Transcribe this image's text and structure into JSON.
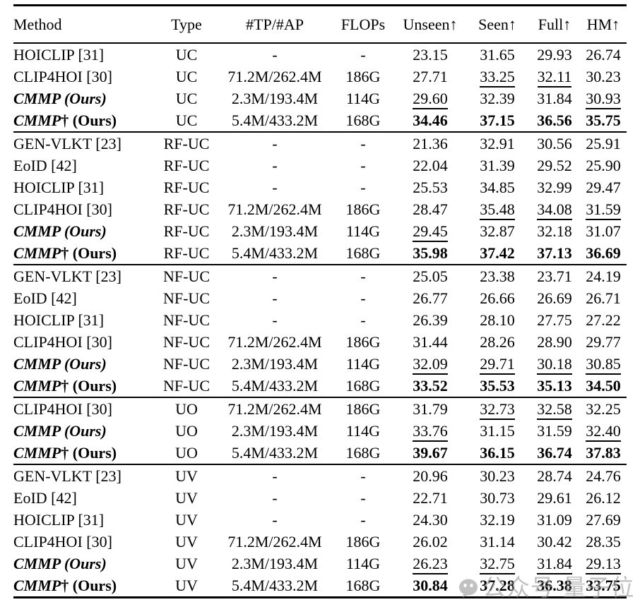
{
  "page": {
    "background": "#ffffff",
    "text_color": "#000000",
    "rule_color": "#000000"
  },
  "table": {
    "columns": [
      "Method",
      "Type",
      "#TP/#AP",
      "FLOPs",
      "Unseen↑",
      "Seen↑",
      "Full↑",
      "HM↑"
    ],
    "sections": [
      {
        "setting": "UC",
        "rows": [
          {
            "method_parts": [
              {
                "text": "HOICLIP [31]",
                "style": "normal"
              }
            ],
            "type": "UC",
            "params": "-",
            "flops": "-",
            "metrics": [
              {
                "v": "23.15",
                "s": ""
              },
              {
                "v": "31.65",
                "s": ""
              },
              {
                "v": "29.93",
                "s": ""
              },
              {
                "v": "26.74",
                "s": ""
              }
            ]
          },
          {
            "method_parts": [
              {
                "text": "CLIP4HOI [30]",
                "style": "normal"
              }
            ],
            "type": "UC",
            "params": "71.2M/262.4M",
            "flops": "186G",
            "metrics": [
              {
                "v": "27.71",
                "s": ""
              },
              {
                "v": "33.25",
                "s": "u"
              },
              {
                "v": "32.11",
                "s": "u"
              },
              {
                "v": "30.23",
                "s": ""
              }
            ]
          },
          {
            "method_parts": [
              {
                "text": "CMMP (Ours)",
                "style": "bolditalic"
              }
            ],
            "type": "UC",
            "params": "2.3M/193.4M",
            "flops": "114G",
            "metrics": [
              {
                "v": "29.60",
                "s": "u"
              },
              {
                "v": "32.39",
                "s": ""
              },
              {
                "v": "31.84",
                "s": ""
              },
              {
                "v": "30.93",
                "s": "u"
              }
            ]
          },
          {
            "method_parts": [
              {
                "text": "CMMP",
                "style": "bolditalic"
              },
              {
                "text": "† (Ours)",
                "style": "bold"
              }
            ],
            "type": "UC",
            "params": "5.4M/433.2M",
            "flops": "168G",
            "metrics": [
              {
                "v": "34.46",
                "s": "b"
              },
              {
                "v": "37.15",
                "s": "b"
              },
              {
                "v": "36.56",
                "s": "b"
              },
              {
                "v": "35.75",
                "s": "b"
              }
            ]
          }
        ]
      },
      {
        "setting": "RF-UC",
        "rows": [
          {
            "method_parts": [
              {
                "text": "GEN-VLKT [23]",
                "style": "normal"
              }
            ],
            "type": "RF-UC",
            "params": "-",
            "flops": "-",
            "metrics": [
              {
                "v": "21.36",
                "s": ""
              },
              {
                "v": "32.91",
                "s": ""
              },
              {
                "v": "30.56",
                "s": ""
              },
              {
                "v": "25.91",
                "s": ""
              }
            ]
          },
          {
            "method_parts": [
              {
                "text": "EoID [42]",
                "style": "normal"
              }
            ],
            "type": "RF-UC",
            "params": "-",
            "flops": "-",
            "metrics": [
              {
                "v": "22.04",
                "s": ""
              },
              {
                "v": "31.39",
                "s": ""
              },
              {
                "v": "29.52",
                "s": ""
              },
              {
                "v": "25.90",
                "s": ""
              }
            ]
          },
          {
            "method_parts": [
              {
                "text": "HOICLIP [31]",
                "style": "normal"
              }
            ],
            "type": "RF-UC",
            "params": "-",
            "flops": "-",
            "metrics": [
              {
                "v": "25.53",
                "s": ""
              },
              {
                "v": "34.85",
                "s": ""
              },
              {
                "v": "32.99",
                "s": ""
              },
              {
                "v": "29.47",
                "s": ""
              }
            ]
          },
          {
            "method_parts": [
              {
                "text": "CLIP4HOI [30]",
                "style": "normal"
              }
            ],
            "type": "RF-UC",
            "params": "71.2M/262.4M",
            "flops": "186G",
            "metrics": [
              {
                "v": "28.47",
                "s": ""
              },
              {
                "v": "35.48",
                "s": "u"
              },
              {
                "v": "34.08",
                "s": "u"
              },
              {
                "v": "31.59",
                "s": "u"
              }
            ]
          },
          {
            "method_parts": [
              {
                "text": "CMMP (Ours)",
                "style": "bolditalic"
              }
            ],
            "type": "RF-UC",
            "params": "2.3M/193.4M",
            "flops": "114G",
            "metrics": [
              {
                "v": "29.45",
                "s": "u"
              },
              {
                "v": "32.87",
                "s": ""
              },
              {
                "v": "32.18",
                "s": ""
              },
              {
                "v": "31.07",
                "s": ""
              }
            ]
          },
          {
            "method_parts": [
              {
                "text": "CMMP",
                "style": "bolditalic"
              },
              {
                "text": "† (Ours)",
                "style": "bold"
              }
            ],
            "type": "RF-UC",
            "params": "5.4M/433.2M",
            "flops": "168G",
            "metrics": [
              {
                "v": "35.98",
                "s": "b"
              },
              {
                "v": "37.42",
                "s": "b"
              },
              {
                "v": "37.13",
                "s": "b"
              },
              {
                "v": "36.69",
                "s": "b"
              }
            ]
          }
        ]
      },
      {
        "setting": "NF-UC",
        "rows": [
          {
            "method_parts": [
              {
                "text": "GEN-VLKT [23]",
                "style": "normal"
              }
            ],
            "type": "NF-UC",
            "params": "-",
            "flops": "-",
            "metrics": [
              {
                "v": "25.05",
                "s": ""
              },
              {
                "v": "23.38",
                "s": ""
              },
              {
                "v": "23.71",
                "s": ""
              },
              {
                "v": "24.19",
                "s": ""
              }
            ]
          },
          {
            "method_parts": [
              {
                "text": "EoID [42]",
                "style": "normal"
              }
            ],
            "type": "NF-UC",
            "params": "-",
            "flops": "-",
            "metrics": [
              {
                "v": "26.77",
                "s": ""
              },
              {
                "v": "26.66",
                "s": ""
              },
              {
                "v": "26.69",
                "s": ""
              },
              {
                "v": "26.71",
                "s": ""
              }
            ]
          },
          {
            "method_parts": [
              {
                "text": "HOICLIP [31]",
                "style": "normal"
              }
            ],
            "type": "NF-UC",
            "params": "-",
            "flops": "-",
            "metrics": [
              {
                "v": "26.39",
                "s": ""
              },
              {
                "v": "28.10",
                "s": ""
              },
              {
                "v": "27.75",
                "s": ""
              },
              {
                "v": "27.22",
                "s": ""
              }
            ]
          },
          {
            "method_parts": [
              {
                "text": "CLIP4HOI [30]",
                "style": "normal"
              }
            ],
            "type": "NF-UC",
            "params": "71.2M/262.4M",
            "flops": "186G",
            "metrics": [
              {
                "v": "31.44",
                "s": ""
              },
              {
                "v": "28.26",
                "s": ""
              },
              {
                "v": "28.90",
                "s": ""
              },
              {
                "v": "29.77",
                "s": ""
              }
            ]
          },
          {
            "method_parts": [
              {
                "text": "CMMP (Ours)",
                "style": "bolditalic"
              }
            ],
            "type": "NF-UC",
            "params": "2.3M/193.4M",
            "flops": "114G",
            "metrics": [
              {
                "v": "32.09",
                "s": "u"
              },
              {
                "v": "29.71",
                "s": "u"
              },
              {
                "v": "30.18",
                "s": "u"
              },
              {
                "v": "30.85",
                "s": "u"
              }
            ]
          },
          {
            "method_parts": [
              {
                "text": "CMMP",
                "style": "bolditalic"
              },
              {
                "text": "† (Ours)",
                "style": "bold"
              }
            ],
            "type": "NF-UC",
            "params": "5.4M/433.2M",
            "flops": "168G",
            "metrics": [
              {
                "v": "33.52",
                "s": "b"
              },
              {
                "v": "35.53",
                "s": "b"
              },
              {
                "v": "35.13",
                "s": "b"
              },
              {
                "v": "34.50",
                "s": "b"
              }
            ]
          }
        ]
      },
      {
        "setting": "UO",
        "rows": [
          {
            "method_parts": [
              {
                "text": "CLIP4HOI [30]",
                "style": "normal"
              }
            ],
            "type": "UO",
            "params": "71.2M/262.4M",
            "flops": "186G",
            "metrics": [
              {
                "v": "31.79",
                "s": ""
              },
              {
                "v": "32.73",
                "s": "u"
              },
              {
                "v": "32.58",
                "s": "u"
              },
              {
                "v": "32.25",
                "s": ""
              }
            ]
          },
          {
            "method_parts": [
              {
                "text": "CMMP (Ours)",
                "style": "bolditalic"
              }
            ],
            "type": "UO",
            "params": "2.3M/193.4M",
            "flops": "114G",
            "metrics": [
              {
                "v": "33.76",
                "s": "u"
              },
              {
                "v": "31.15",
                "s": ""
              },
              {
                "v": "31.59",
                "s": ""
              },
              {
                "v": "32.40",
                "s": "u"
              }
            ]
          },
          {
            "method_parts": [
              {
                "text": "CMMP",
                "style": "bolditalic"
              },
              {
                "text": "† (Ours)",
                "style": "bold"
              }
            ],
            "type": "UO",
            "params": "5.4M/433.2M",
            "flops": "168G",
            "metrics": [
              {
                "v": "39.67",
                "s": "b"
              },
              {
                "v": "36.15",
                "s": "b"
              },
              {
                "v": "36.74",
                "s": "b"
              },
              {
                "v": "37.83",
                "s": "b"
              }
            ]
          }
        ]
      },
      {
        "setting": "UV",
        "rows": [
          {
            "method_parts": [
              {
                "text": "GEN-VLKT [23]",
                "style": "normal"
              }
            ],
            "type": "UV",
            "params": "-",
            "flops": "-",
            "metrics": [
              {
                "v": "20.96",
                "s": ""
              },
              {
                "v": "30.23",
                "s": ""
              },
              {
                "v": "28.74",
                "s": ""
              },
              {
                "v": "24.76",
                "s": ""
              }
            ]
          },
          {
            "method_parts": [
              {
                "text": "EoID [42]",
                "style": "normal"
              }
            ],
            "type": "UV",
            "params": "-",
            "flops": "-",
            "metrics": [
              {
                "v": "22.71",
                "s": ""
              },
              {
                "v": "30.73",
                "s": ""
              },
              {
                "v": "29.61",
                "s": ""
              },
              {
                "v": "26.12",
                "s": ""
              }
            ]
          },
          {
            "method_parts": [
              {
                "text": "HOICLIP [31]",
                "style": "normal"
              }
            ],
            "type": "UV",
            "params": "-",
            "flops": "-",
            "metrics": [
              {
                "v": "24.30",
                "s": ""
              },
              {
                "v": "32.19",
                "s": ""
              },
              {
                "v": "31.09",
                "s": ""
              },
              {
                "v": "27.69",
                "s": ""
              }
            ]
          },
          {
            "method_parts": [
              {
                "text": "CLIP4HOI [30]",
                "style": "normal"
              }
            ],
            "type": "UV",
            "params": "71.2M/262.4M",
            "flops": "186G",
            "metrics": [
              {
                "v": "26.02",
                "s": ""
              },
              {
                "v": "31.14",
                "s": ""
              },
              {
                "v": "30.42",
                "s": ""
              },
              {
                "v": "28.35",
                "s": ""
              }
            ]
          },
          {
            "method_parts": [
              {
                "text": "CMMP (Ours)",
                "style": "bolditalic"
              }
            ],
            "type": "UV",
            "params": "2.3M/193.4M",
            "flops": "114G",
            "metrics": [
              {
                "v": "26.23",
                "s": "u"
              },
              {
                "v": "32.75",
                "s": "u"
              },
              {
                "v": "31.84",
                "s": "u"
              },
              {
                "v": "29.13",
                "s": "u"
              }
            ]
          },
          {
            "method_parts": [
              {
                "text": "CMMP",
                "style": "bolditalic"
              },
              {
                "text": "† (Ours)",
                "style": "bold"
              }
            ],
            "type": "UV",
            "params": "5.4M/433.2M",
            "flops": "168G",
            "metrics": [
              {
                "v": "30.84",
                "s": "b"
              },
              {
                "v": "37.28",
                "s": "b"
              },
              {
                "v": "36.38",
                "s": "b"
              },
              {
                "v": "33.75",
                "s": "b"
              }
            ]
          }
        ]
      }
    ]
  },
  "watermark": {
    "icon": "wechat-icon",
    "text": "公众号 量子位",
    "color": "#9c9c9c"
  }
}
